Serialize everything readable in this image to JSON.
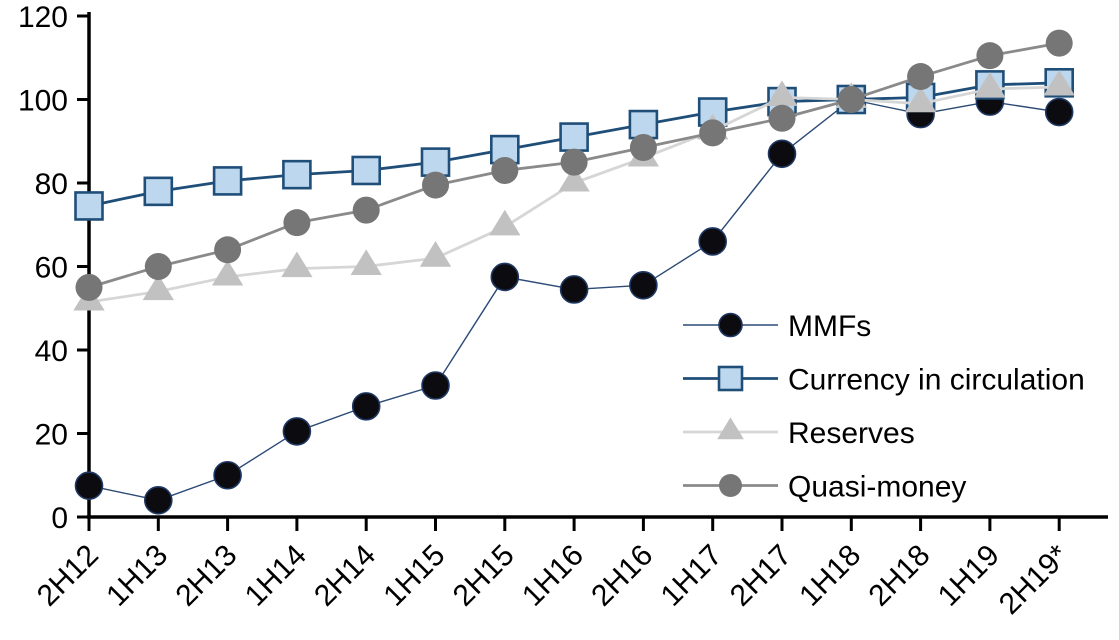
{
  "chart_data": {
    "type": "line",
    "title": "",
    "xlabel": "",
    "ylabel": "",
    "grid": false,
    "legend_position": "center-right",
    "ylim": [
      0,
      120
    ],
    "yticks": [
      0,
      20,
      40,
      60,
      80,
      100,
      120
    ],
    "categories": [
      "2H12",
      "1H13",
      "2H13",
      "1H14",
      "2H14",
      "1H15",
      "2H15",
      "1H16",
      "2H16",
      "1H17",
      "2H17",
      "1H18",
      "2H18",
      "1H19",
      "2H19*"
    ],
    "series": [
      {
        "name": "MMFs",
        "marker": "circle",
        "marker_color": "#0b0b10",
        "marker_stroke": "#1f3864",
        "line_color": "#2b4a75",
        "line_width": 1.4,
        "values": [
          7.5,
          4,
          10,
          20.5,
          26.5,
          31.5,
          57.5,
          54.5,
          55.5,
          66,
          87,
          100,
          96.5,
          99.5,
          97
        ]
      },
      {
        "name": "Currency in circulation",
        "marker": "square",
        "marker_color": "#bdd7ee",
        "marker_stroke": "#1f4e79",
        "line_color": "#1f4e79",
        "line_width": 2.8,
        "values": [
          74.5,
          78,
          80.5,
          82,
          83,
          85,
          88,
          91,
          94,
          97,
          99.5,
          100,
          100.5,
          103.5,
          104
        ]
      },
      {
        "name": "Reserves",
        "marker": "triangle",
        "marker_color": "#c1c1c1",
        "marker_stroke": "none",
        "line_color": "#d6d6d6",
        "line_width": 2.8,
        "values": [
          51.5,
          54,
          57.5,
          59.5,
          60,
          62,
          69.5,
          80,
          86,
          92.5,
          100.5,
          100,
          99,
          102.5,
          103
        ]
      },
      {
        "name": "Quasi-money",
        "marker": "circle",
        "marker_color": "#767676",
        "marker_stroke": "none",
        "line_color": "#8a8a8a",
        "line_width": 2.8,
        "values": [
          55,
          60,
          64,
          70.5,
          73.5,
          79.5,
          83,
          85,
          88.5,
          92,
          95.5,
          100,
          105.5,
          110.5,
          113.5
        ]
      }
    ],
    "axis_color": "#000000",
    "text_color": "#000000"
  }
}
